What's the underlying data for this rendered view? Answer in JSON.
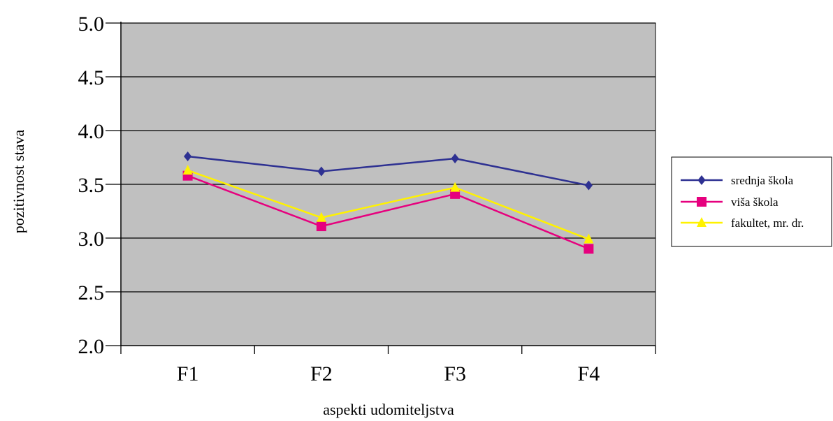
{
  "chart_data": {
    "type": "line",
    "categories": [
      "F1",
      "F2",
      "F3",
      "F4"
    ],
    "series": [
      {
        "name": "srednja škola",
        "values": [
          3.76,
          3.62,
          3.74,
          3.49
        ],
        "color": "#2E3192",
        "marker": "diamond"
      },
      {
        "name": "viša škola",
        "values": [
          3.58,
          3.11,
          3.41,
          2.9
        ],
        "color": "#E6007E",
        "marker": "square"
      },
      {
        "name": "fakultet, mr. dr.",
        "values": [
          3.63,
          3.19,
          3.47,
          2.99
        ],
        "color": "#FFF200",
        "marker": "triangle"
      }
    ],
    "xlabel": "aspekti udomiteljstva",
    "ylabel": "pozitivnost stava",
    "ylim": [
      2.0,
      5.0
    ],
    "yticks": [
      "5.0",
      "4.5",
      "4.0",
      "3.5",
      "3.0",
      "2.5",
      "2.0"
    ],
    "grid": true,
    "plot_background": "#C0C0C0",
    "legend_position": "right"
  }
}
